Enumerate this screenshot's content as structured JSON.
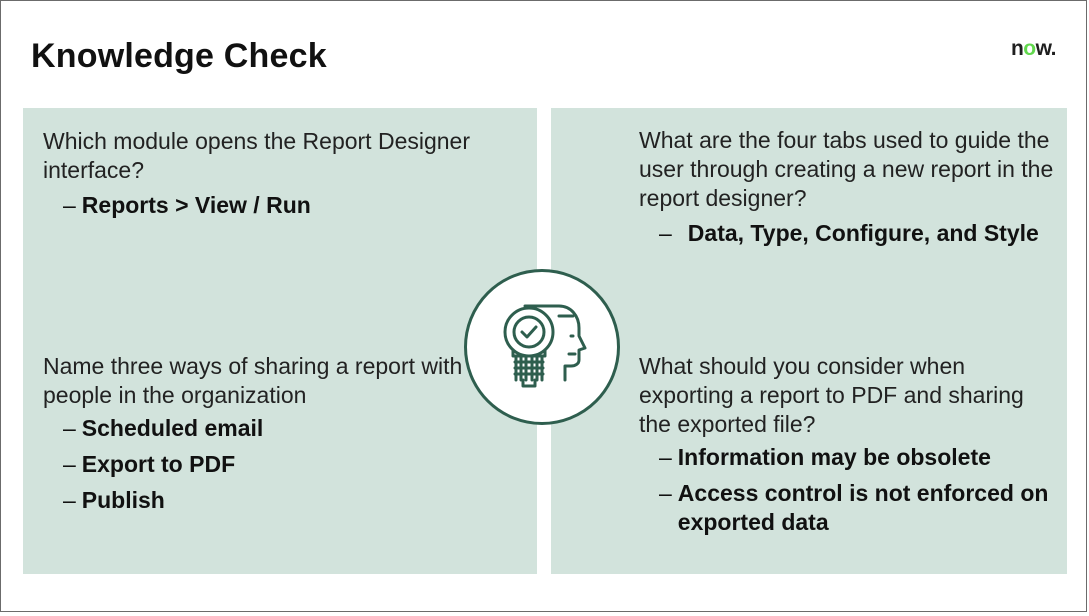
{
  "slide": {
    "title": "Knowledge Check",
    "logo": {
      "prefix": "n",
      "o": "o",
      "suffix": "w."
    }
  },
  "quadrants": {
    "top_left": {
      "question": "Which module opens the Report Designer interface?",
      "answers": [
        "Reports > View / Run"
      ]
    },
    "top_right": {
      "question": "What are the four tabs used to guide the user through creating a new report in the report designer?",
      "answers": [
        "Data, Type, Configure, and Style"
      ]
    },
    "bottom_left": {
      "question": "Name three ways of sharing a report with other people in the organization",
      "answers": [
        "Scheduled email",
        "Export to PDF",
        "Publish"
      ]
    },
    "bottom_right": {
      "question": "What should you consider when exporting a report to PDF and sharing the exported file?",
      "answers": [
        "Information may be obsolete",
        "Access control is not enforced on exported data"
      ]
    }
  },
  "center_icon": "lightbulb-head-check-icon",
  "colors": {
    "panel": "#d2e3dc",
    "icon_stroke": "#2e5e4e",
    "logo_accent": "#62d84e"
  },
  "dash": "–"
}
